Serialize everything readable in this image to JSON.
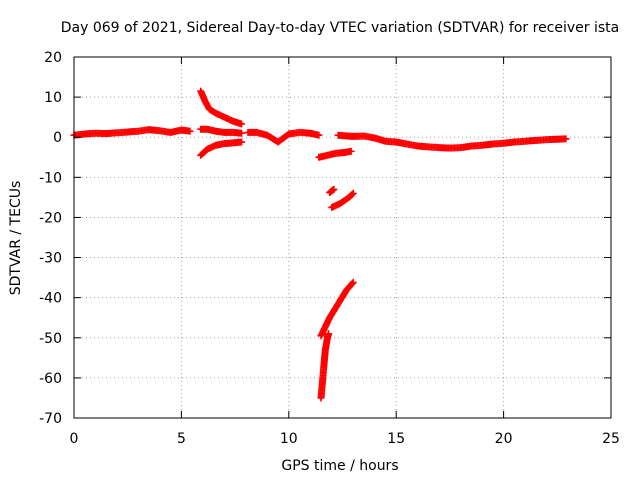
{
  "chart_data": {
    "type": "scatter",
    "title": "Day 069 of 2021, Sidereal Day-to-day VTEC variation (SDTVAR) for receiver ista",
    "xlabel": "GPS time / hours",
    "ylabel": "SDTVAR / TECUs",
    "xlim": [
      0,
      25
    ],
    "ylim": [
      -70,
      20
    ],
    "xticks": [
      0,
      5,
      10,
      15,
      20,
      25
    ],
    "yticks": [
      20,
      10,
      0,
      -10,
      -20,
      -30,
      -40,
      -50,
      -60,
      -70
    ],
    "xtick_labels": [
      "0",
      "5",
      "10",
      "15",
      "20",
      "25"
    ],
    "ytick_labels": [
      "20",
      "10",
      "0",
      "-10",
      "-20",
      "-30",
      "-40",
      "-50",
      "-60",
      "-70"
    ],
    "grid": true,
    "marker": "plus",
    "series_color": "#ff0000",
    "series": [
      {
        "name": "SDTVAR",
        "segments": [
          [
            [
              0,
              0.5
            ],
            [
              0.5,
              0.8
            ],
            [
              1,
              1.0
            ],
            [
              1.5,
              0.9
            ],
            [
              2,
              1.1
            ],
            [
              2.5,
              1.3
            ],
            [
              3,
              1.5
            ],
            [
              3.5,
              1.9
            ],
            [
              4,
              1.6
            ],
            [
              4.5,
              1.2
            ],
            [
              5,
              1.8
            ],
            [
              5.4,
              1.5
            ]
          ],
          [
            [
              5.9,
              11.5
            ],
            [
              6.1,
              9
            ],
            [
              6.3,
              7
            ],
            [
              6.6,
              6
            ],
            [
              7,
              5
            ],
            [
              7.4,
              4
            ],
            [
              7.8,
              3.3
            ]
          ],
          [
            [
              5.9,
              2
            ],
            [
              6.2,
              2
            ],
            [
              6.6,
              1.5
            ],
            [
              7,
              1.2
            ],
            [
              7.4,
              1.2
            ],
            [
              7.8,
              1
            ]
          ],
          [
            [
              5.9,
              -4.5
            ],
            [
              6.2,
              -3
            ],
            [
              6.6,
              -2
            ],
            [
              7,
              -1.6
            ],
            [
              7.4,
              -1.4
            ],
            [
              7.8,
              -1.2
            ]
          ],
          [
            [
              8.1,
              1.2
            ],
            [
              8.5,
              1.2
            ],
            [
              9,
              0.5
            ],
            [
              9.5,
              -1.2
            ],
            [
              10,
              0.8
            ],
            [
              10.5,
              1.2
            ],
            [
              11,
              1
            ],
            [
              11.4,
              0.5
            ]
          ],
          [
            [
              11.4,
              -5
            ],
            [
              11.8,
              -4.5
            ],
            [
              12.2,
              -4
            ],
            [
              12.6,
              -3.8
            ],
            [
              12.9,
              -3.5
            ]
          ],
          [
            [
              12.3,
              0.5
            ],
            [
              12.7,
              0.3
            ],
            [
              13,
              0.2
            ],
            [
              13.5,
              0.3
            ],
            [
              14,
              -0.2
            ],
            [
              14.5,
              -1
            ],
            [
              15,
              -1.2
            ],
            [
              15.5,
              -1.7
            ],
            [
              16,
              -2.2
            ],
            [
              16.5,
              -2.4
            ],
            [
              17,
              -2.6
            ],
            [
              17.5,
              -2.7
            ],
            [
              18,
              -2.6
            ],
            [
              18.5,
              -2.2
            ],
            [
              19,
              -2
            ],
            [
              19.5,
              -1.7
            ],
            [
              20,
              -1.5
            ],
            [
              20.5,
              -1.2
            ],
            [
              21,
              -1
            ],
            [
              21.5,
              -0.8
            ],
            [
              22,
              -0.6
            ],
            [
              22.5,
              -0.5
            ],
            [
              22.9,
              -0.4
            ]
          ],
          [
            [
              11.9,
              -13.8
            ],
            [
              12.1,
              -13
            ]
          ],
          [
            [
              12,
              -17.5
            ],
            [
              12.4,
              -16.5
            ],
            [
              12.8,
              -15
            ],
            [
              13,
              -14
            ]
          ],
          [
            [
              11.5,
              -49.5
            ],
            [
              11.9,
              -45
            ],
            [
              12.3,
              -41.5
            ],
            [
              12.7,
              -38
            ],
            [
              13,
              -36.2
            ]
          ],
          [
            [
              11.5,
              -65
            ],
            [
              11.55,
              -62
            ],
            [
              11.6,
              -59
            ],
            [
              11.65,
              -56
            ],
            [
              11.7,
              -53
            ],
            [
              11.8,
              -50
            ],
            [
              11.85,
              -49
            ]
          ]
        ]
      }
    ]
  }
}
